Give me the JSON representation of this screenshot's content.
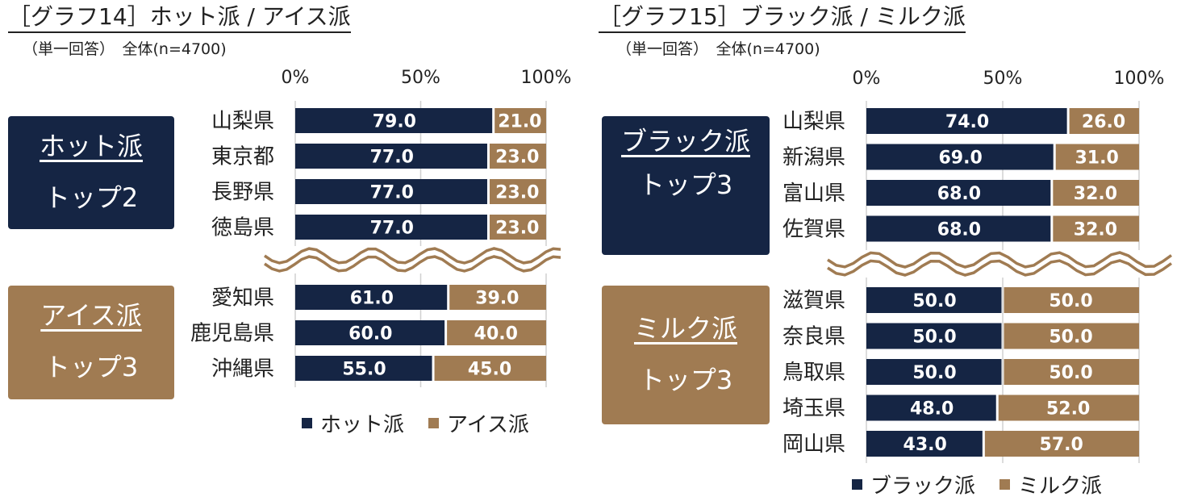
{
  "chart_data": [
    {
      "type": "bar",
      "orientation": "horizontal",
      "stacked": true,
      "title": "［グラフ14］ホット派 / アイス派",
      "subtitle": "（単一回答）　全体(n=4700)",
      "categories": [
        "山梨県",
        "東京都",
        "長野県",
        "徳島県",
        "愛知県",
        "鹿児島県",
        "沖縄県"
      ],
      "series": [
        {
          "name": "ホット派",
          "color": "#152544",
          "values": [
            79.0,
            77.0,
            77.0,
            77.0,
            61.0,
            60.0,
            55.0
          ]
        },
        {
          "name": "アイス派",
          "color": "#a07b52",
          "values": [
            21.0,
            23.0,
            23.0,
            23.0,
            39.0,
            40.0,
            45.0
          ]
        }
      ],
      "xlim": [
        0,
        100
      ],
      "x_ticks": [
        "0%",
        "50%",
        "100%"
      ],
      "groups": [
        {
          "name": "ホット派",
          "rank": "トップ2",
          "color": "#152544",
          "count": 4
        },
        {
          "name": "アイス派",
          "rank": "トップ3",
          "color": "#a07b52",
          "count": 3
        }
      ],
      "grid": true,
      "legend": "bottom"
    },
    {
      "type": "bar",
      "orientation": "horizontal",
      "stacked": true,
      "title": "［グラフ15］ブラック派 / ミルク派",
      "subtitle": "（単一回答）　全体(n=4700)",
      "categories": [
        "山梨県",
        "新潟県",
        "富山県",
        "佐賀県",
        "滋賀県",
        "奈良県",
        "鳥取県",
        "埼玉県",
        "岡山県"
      ],
      "series": [
        {
          "name": "ブラック派",
          "color": "#152544",
          "values": [
            74.0,
            69.0,
            68.0,
            68.0,
            50.0,
            50.0,
            50.0,
            48.0,
            43.0
          ]
        },
        {
          "name": "ミルク派",
          "color": "#a07b52",
          "values": [
            26.0,
            31.0,
            32.0,
            32.0,
            50.0,
            50.0,
            50.0,
            52.0,
            57.0
          ]
        }
      ],
      "xlim": [
        0,
        100
      ],
      "x_ticks": [
        "0%",
        "50%",
        "100%"
      ],
      "groups": [
        {
          "name": "ブラック派",
          "rank": "トップ3",
          "color": "#152544",
          "count": 4
        },
        {
          "name": "ミルク派",
          "rank": "トップ3",
          "color": "#a07b52",
          "count": 5
        }
      ],
      "grid": true,
      "legend": "bottom"
    }
  ]
}
